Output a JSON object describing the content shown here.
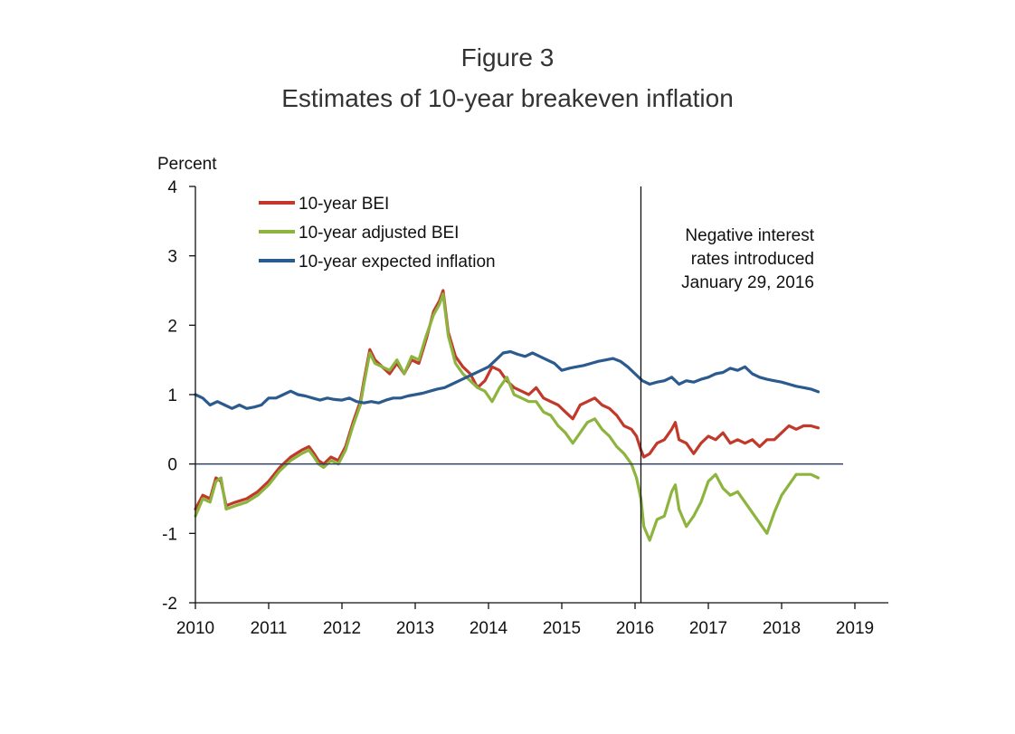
{
  "figure": {
    "number": "Figure 3",
    "title": "Estimates of 10-year breakeven inflation"
  },
  "chart_data": {
    "type": "line",
    "title": "Estimates of 10-year breakeven inflation",
    "ylabel": "Percent",
    "xlabel": "",
    "xlim": [
      2010,
      2019.5
    ],
    "ylim": [
      -2,
      4
    ],
    "x_ticks": [
      "2010",
      "2011",
      "2012",
      "2013",
      "2014",
      "2015",
      "2016",
      "2017",
      "2018",
      "2019"
    ],
    "y_ticks": [
      "4",
      "3",
      "2",
      "1",
      "0",
      "-1",
      "-2"
    ],
    "legend_position": "top-left",
    "colors": {
      "bei": "#c0392b",
      "adjusted": "#8db43e",
      "expected": "#2b5b8e",
      "axis": "#111111",
      "zero_line": "#2b3a5e"
    },
    "annotation": {
      "x": 2016.08,
      "lines": [
        "Negative interest",
        "rates introduced",
        "January 29, 2016"
      ]
    },
    "series": [
      {
        "name": "10-year BEI",
        "key": "bei",
        "x": [
          2010.0,
          2010.1,
          2010.2,
          2010.28,
          2010.35,
          2010.42,
          2010.55,
          2010.7,
          2010.85,
          2011.0,
          2011.15,
          2011.3,
          2011.45,
          2011.55,
          2011.62,
          2011.68,
          2011.75,
          2011.85,
          2011.95,
          2012.05,
          2012.15,
          2012.25,
          2012.3,
          2012.38,
          2012.45,
          2012.55,
          2012.65,
          2012.75,
          2012.85,
          2012.95,
          2013.05,
          2013.15,
          2013.25,
          2013.33,
          2013.38,
          2013.45,
          2013.55,
          2013.65,
          2013.75,
          2013.85,
          2013.95,
          2014.05,
          2014.15,
          2014.25,
          2014.35,
          2014.45,
          2014.55,
          2014.65,
          2014.75,
          2014.85,
          2014.95,
          2015.05,
          2015.15,
          2015.25,
          2015.35,
          2015.45,
          2015.55,
          2015.65,
          2015.75,
          2015.85,
          2015.95,
          2016.02,
          2016.08,
          2016.12,
          2016.2,
          2016.3,
          2016.4,
          2016.5,
          2016.55,
          2016.6,
          2016.7,
          2016.8,
          2016.9,
          2017.0,
          2017.1,
          2017.2,
          2017.3,
          2017.4,
          2017.5,
          2017.6,
          2017.7,
          2017.8,
          2017.9,
          2018.0,
          2018.1,
          2018.2,
          2018.3,
          2018.4,
          2018.5
        ],
        "values": [
          -0.65,
          -0.45,
          -0.5,
          -0.2,
          -0.25,
          -0.6,
          -0.55,
          -0.5,
          -0.4,
          -0.25,
          -0.05,
          0.1,
          0.2,
          0.25,
          0.15,
          0.05,
          0.0,
          0.1,
          0.05,
          0.25,
          0.6,
          0.9,
          1.2,
          1.65,
          1.5,
          1.4,
          1.3,
          1.45,
          1.3,
          1.5,
          1.45,
          1.8,
          2.2,
          2.35,
          2.5,
          1.9,
          1.55,
          1.4,
          1.3,
          1.1,
          1.2,
          1.4,
          1.35,
          1.2,
          1.1,
          1.05,
          1.0,
          1.1,
          0.95,
          0.9,
          0.85,
          0.75,
          0.65,
          0.85,
          0.9,
          0.95,
          0.85,
          0.8,
          0.7,
          0.55,
          0.5,
          0.4,
          0.2,
          0.1,
          0.15,
          0.3,
          0.35,
          0.5,
          0.6,
          0.35,
          0.3,
          0.15,
          0.3,
          0.4,
          0.35,
          0.45,
          0.3,
          0.35,
          0.3,
          0.35,
          0.25,
          0.35,
          0.35,
          0.45,
          0.55,
          0.5,
          0.55,
          0.55,
          0.52
        ]
      },
      {
        "name": "10-year adjusted BEI",
        "key": "adjusted",
        "x": [
          2010.0,
          2010.1,
          2010.2,
          2010.28,
          2010.35,
          2010.42,
          2010.55,
          2010.7,
          2010.85,
          2011.0,
          2011.15,
          2011.3,
          2011.45,
          2011.55,
          2011.62,
          2011.68,
          2011.75,
          2011.85,
          2011.95,
          2012.05,
          2012.15,
          2012.25,
          2012.3,
          2012.38,
          2012.45,
          2012.55,
          2012.65,
          2012.75,
          2012.85,
          2012.95,
          2013.05,
          2013.15,
          2013.25,
          2013.33,
          2013.38,
          2013.45,
          2013.55,
          2013.65,
          2013.75,
          2013.85,
          2013.95,
          2014.05,
          2014.15,
          2014.25,
          2014.35,
          2014.45,
          2014.55,
          2014.65,
          2014.75,
          2014.85,
          2014.95,
          2015.05,
          2015.15,
          2015.25,
          2015.35,
          2015.45,
          2015.55,
          2015.65,
          2015.75,
          2015.85,
          2015.95,
          2016.02,
          2016.08,
          2016.12,
          2016.2,
          2016.3,
          2016.4,
          2016.5,
          2016.55,
          2016.6,
          2016.7,
          2016.8,
          2016.9,
          2017.0,
          2017.1,
          2017.2,
          2017.3,
          2017.4,
          2017.5,
          2017.6,
          2017.7,
          2017.8,
          2017.9,
          2018.0,
          2018.1,
          2018.2,
          2018.3,
          2018.4,
          2018.5
        ],
        "values": [
          -0.75,
          -0.5,
          -0.55,
          -0.25,
          -0.2,
          -0.65,
          -0.6,
          -0.55,
          -0.45,
          -0.3,
          -0.1,
          0.05,
          0.15,
          0.2,
          0.1,
          0.0,
          -0.05,
          0.05,
          0.0,
          0.2,
          0.55,
          0.85,
          1.15,
          1.6,
          1.45,
          1.4,
          1.35,
          1.5,
          1.3,
          1.55,
          1.5,
          1.85,
          2.15,
          2.3,
          2.45,
          1.85,
          1.45,
          1.3,
          1.2,
          1.1,
          1.05,
          0.9,
          1.1,
          1.25,
          1.0,
          0.95,
          0.9,
          0.9,
          0.75,
          0.7,
          0.55,
          0.45,
          0.3,
          0.45,
          0.6,
          0.65,
          0.5,
          0.4,
          0.25,
          0.15,
          0.0,
          -0.2,
          -0.5,
          -0.9,
          -1.1,
          -0.8,
          -0.75,
          -0.4,
          -0.3,
          -0.65,
          -0.9,
          -0.75,
          -0.55,
          -0.25,
          -0.15,
          -0.35,
          -0.45,
          -0.4,
          -0.55,
          -0.7,
          -0.85,
          -1.0,
          -0.7,
          -0.45,
          -0.3,
          -0.15,
          -0.15,
          -0.15,
          -0.2
        ]
      },
      {
        "name": "10-year expected inflation",
        "key": "expected",
        "x": [
          2010.0,
          2010.1,
          2010.2,
          2010.3,
          2010.4,
          2010.5,
          2010.6,
          2010.7,
          2010.8,
          2010.9,
          2011.0,
          2011.1,
          2011.2,
          2011.3,
          2011.4,
          2011.5,
          2011.6,
          2011.7,
          2011.8,
          2011.9,
          2012.0,
          2012.1,
          2012.2,
          2012.3,
          2012.4,
          2012.5,
          2012.6,
          2012.7,
          2012.8,
          2012.9,
          2013.0,
          2013.1,
          2013.2,
          2013.3,
          2013.4,
          2013.5,
          2013.6,
          2013.7,
          2013.8,
          2013.9,
          2014.0,
          2014.1,
          2014.2,
          2014.3,
          2014.4,
          2014.5,
          2014.6,
          2014.7,
          2014.8,
          2014.9,
          2015.0,
          2015.1,
          2015.2,
          2015.3,
          2015.4,
          2015.5,
          2015.6,
          2015.7,
          2015.8,
          2015.9,
          2016.0,
          2016.1,
          2016.2,
          2016.3,
          2016.4,
          2016.5,
          2016.6,
          2016.7,
          2016.8,
          2016.9,
          2017.0,
          2017.1,
          2017.2,
          2017.3,
          2017.4,
          2017.5,
          2017.6,
          2017.7,
          2017.8,
          2017.9,
          2018.0,
          2018.1,
          2018.2,
          2018.3,
          2018.4,
          2018.5
        ],
        "values": [
          1.0,
          0.95,
          0.85,
          0.9,
          0.85,
          0.8,
          0.85,
          0.8,
          0.82,
          0.85,
          0.95,
          0.95,
          1.0,
          1.05,
          1.0,
          0.98,
          0.95,
          0.92,
          0.95,
          0.93,
          0.92,
          0.95,
          0.9,
          0.88,
          0.9,
          0.88,
          0.92,
          0.95,
          0.95,
          0.98,
          1.0,
          1.02,
          1.05,
          1.08,
          1.1,
          1.15,
          1.2,
          1.25,
          1.3,
          1.35,
          1.4,
          1.5,
          1.6,
          1.62,
          1.58,
          1.55,
          1.6,
          1.55,
          1.5,
          1.45,
          1.35,
          1.38,
          1.4,
          1.42,
          1.45,
          1.48,
          1.5,
          1.52,
          1.48,
          1.4,
          1.3,
          1.2,
          1.15,
          1.18,
          1.2,
          1.25,
          1.15,
          1.2,
          1.18,
          1.22,
          1.25,
          1.3,
          1.32,
          1.38,
          1.35,
          1.4,
          1.3,
          1.25,
          1.22,
          1.2,
          1.18,
          1.15,
          1.12,
          1.1,
          1.08,
          1.04
        ]
      }
    ]
  }
}
